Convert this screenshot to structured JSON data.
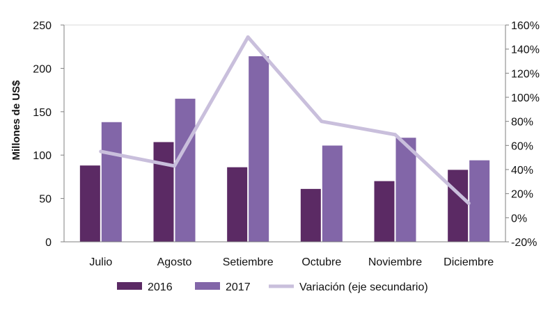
{
  "chart_data": {
    "type": "bar",
    "title": "",
    "xlabel": "",
    "ylabel": "Millones de US$",
    "ylim": [
      0,
      250
    ],
    "yticks": [
      "0",
      "50",
      "100",
      "150",
      "200",
      "250"
    ],
    "y2lim": [
      -20,
      160
    ],
    "y2ticks": [
      "-20%",
      "0%",
      "20%",
      "40%",
      "60%",
      "80%",
      "100%",
      "120%",
      "140%",
      "160%"
    ],
    "categories": [
      "Julio",
      "Agosto",
      "Setiembre",
      "Octubre",
      "Noviembre",
      "Diciembre"
    ],
    "series": [
      {
        "name": "2016",
        "type": "bar",
        "color": "#5b2a64",
        "values": [
          88,
          115,
          86,
          61,
          70,
          83
        ]
      },
      {
        "name": "2017",
        "type": "bar",
        "color": "#8266a8",
        "values": [
          138,
          165,
          214,
          111,
          120,
          94
        ]
      },
      {
        "name": "Variación (eje secundario)",
        "type": "line",
        "axis": "secondary",
        "color": "#c9bfdc",
        "values": [
          55,
          43,
          150,
          80,
          69,
          12
        ]
      }
    ],
    "legend_position": "bottom",
    "grid": false
  }
}
